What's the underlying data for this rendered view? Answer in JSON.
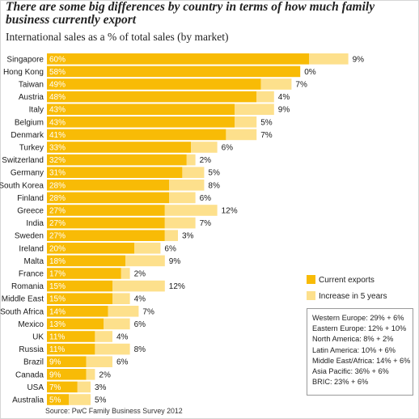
{
  "title": "There are some big differences by country in terms of how much family business currently export",
  "subtitle": "International sales as a % of total sales (by market)",
  "legend": {
    "current_label": "Current exports",
    "increase_label": "Increase in 5 years"
  },
  "colors": {
    "current": "#f8bb06",
    "increase": "#fde08c",
    "value_text": "#ffffff",
    "label_text": "#1a1a1a"
  },
  "regions": [
    "Western Europe: 29% + 6%",
    "Eastern Europe: 12% + 10%",
    "North America: 8% + 2%",
    "Latin America: 10% + 6%",
    "Middle East/Africa: 14% + 6%",
    "Asia Pacific: 36% + 6%",
    "BRIC: 23% + 6%"
  ],
  "source": "Source: PwC Family Business Survey 2012",
  "chart_data": {
    "type": "bar",
    "orientation": "horizontal",
    "stacked": true,
    "categories": [
      "Singapore",
      "Hong Kong",
      "Taiwan",
      "Austria",
      "Italy",
      "Belgium",
      "Denmark",
      "Turkey",
      "Switzerland",
      "Germany",
      "South Korea",
      "Finland",
      "Greece",
      "India",
      "Sweden",
      "Ireland",
      "Malta",
      "France",
      "Romania",
      "Middle East",
      "South Africa",
      "Mexico",
      "UK",
      "Russia",
      "Brazil",
      "Canada",
      "USA",
      "Australia"
    ],
    "series": [
      {
        "name": "Current exports",
        "values": [
          60,
          58,
          49,
          48,
          43,
          43,
          41,
          33,
          32,
          31,
          28,
          28,
          27,
          27,
          27,
          20,
          18,
          17,
          15,
          15,
          14,
          13,
          11,
          11,
          9,
          9,
          7,
          5
        ]
      },
      {
        "name": "Increase in 5 years",
        "values": [
          9,
          0,
          7,
          4,
          9,
          5,
          7,
          6,
          2,
          5,
          8,
          6,
          12,
          7,
          3,
          6,
          9,
          2,
          12,
          4,
          7,
          6,
          4,
          8,
          6,
          2,
          3,
          5
        ]
      }
    ],
    "current_labels": [
      "60%",
      "58%",
      "49%",
      "48%",
      "43%",
      "43%",
      "41%",
      "33%",
      "32%",
      "31%",
      "28%",
      "28%",
      "27%",
      "27%",
      "27%",
      "20%",
      "18%",
      "17%",
      "15%",
      "15%",
      "14%",
      "13%",
      "11%",
      "11%",
      "9%",
      "9%",
      "7%",
      "5%"
    ],
    "increase_labels": [
      "9%",
      "0%",
      "7%",
      "4%",
      "9%",
      "5%",
      "7%",
      "6%",
      "2%",
      "5%",
      "8%",
      "6%",
      "12%",
      "7%",
      "3%",
      "6%",
      "9%",
      "2%",
      "12%",
      "4%",
      "7%",
      "6%",
      "4%",
      "8%",
      "6%",
      "2%",
      "3%",
      "5%"
    ],
    "xlim": [
      0,
      70
    ],
    "grid": false,
    "legend_position": "right"
  }
}
